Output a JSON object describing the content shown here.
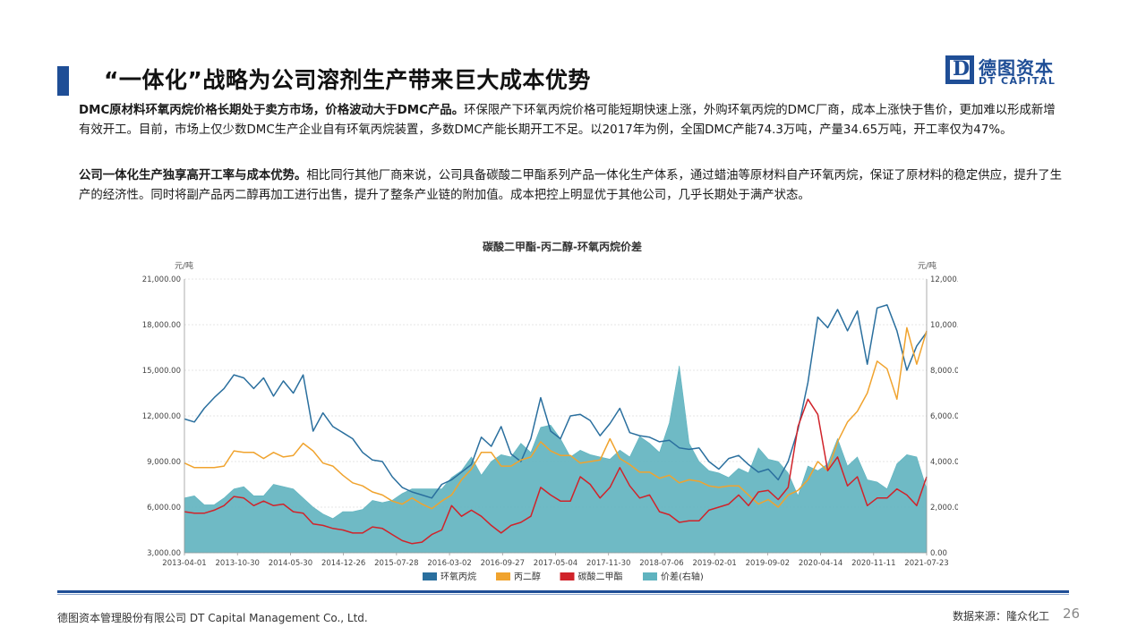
{
  "page": {
    "title": "“一体化”战略为公司溶剂生产带来巨大成本优势",
    "logo": {
      "cn": "德图资本",
      "en": "DT CAPITAL",
      "mark": "D"
    },
    "para1": {
      "bold": "DMC原材料环氧丙烷价格长期处于卖方市场，价格波动大于DMC产品。",
      "text": "环保限产下环氧丙烷价格可能短期快速上涨，外购环氧丙烷的DMC厂商，成本上涨快于售价，更加难以形成新增有效开工。目前，市场上仅少数DMC生产企业自有环氧丙烷装置，多数DMC产能长期开工不足。以2017年为例，全国DMC产能74.3万吨，产量34.65万吨，开工率仅为47%。"
    },
    "para2": {
      "bold": "公司一体化生产独享高开工率与成本优势。",
      "text": "相比同行其他厂商来说，公司具备碳酸二甲酯系列产品一体化生产体系，通过蜡油等原材料自产环氧丙烷，保证了原材料的稳定供应，提升了生产的经济性。同时将副产品丙二醇再加工进行出售，提升了整条产业链的附加值。成本把控上明显优于其他公司，几乎长期处于满产状态。"
    },
    "footer": {
      "company": "德图资本管理股份有限公司 DT Capital Management Co., Ltd.",
      "source": "数据来源：隆众化工",
      "page_number": "26"
    }
  },
  "chart_data": {
    "type": "line",
    "title": "碳酸二甲酯-丙二醇-环氧丙烷价差",
    "left_unit": "元/吨",
    "right_unit": "元/吨",
    "ylim_left": [
      3000,
      21000
    ],
    "ylim_right": [
      0,
      12000
    ],
    "yticks_left": [
      "3,000.00",
      "6,000.00",
      "9,000.00",
      "12,000.00",
      "15,000.00",
      "18,000.00",
      "21,000.00"
    ],
    "yticks_right": [
      "0.00",
      "2,000.00",
      "4,000.00",
      "6,000.00",
      "8,000.00",
      "10,000.00",
      "12,000.00"
    ],
    "x_ticks": [
      "2013-04-01",
      "2013-10-30",
      "2014-05-30",
      "2014-12-26",
      "2015-07-28",
      "2016-03-02",
      "2016-09-27",
      "2017-05-04",
      "2017-11-30",
      "2018-07-06",
      "2019-02-01",
      "2019-09-02",
      "2020-04-14",
      "2020-11-11",
      "2021-07-23"
    ],
    "grid": true,
    "legend": "bottom",
    "series": [
      {
        "name": "环氧丙烷",
        "color": "#2a6f9e",
        "axis": "left",
        "kind": "line",
        "values": [
          11800,
          11600,
          12500,
          13200,
          13800,
          14700,
          14500,
          13800,
          14500,
          13300,
          14300,
          13500,
          14700,
          11000,
          12200,
          11300,
          10900,
          10500,
          9600,
          9100,
          9000,
          8000,
          7300,
          7000,
          6800,
          6600,
          7500,
          7800,
          8300,
          8800,
          10600,
          10000,
          11300,
          9500,
          9000,
          10500,
          13200,
          11000,
          10500,
          12000,
          12100,
          11700,
          10700,
          11500,
          12500,
          10900,
          10700,
          10600,
          10300,
          10400,
          9900,
          9800,
          9900,
          9000,
          8500,
          9200,
          9400,
          8800,
          8300,
          8500,
          7800,
          9000,
          11100,
          14200,
          18500,
          17800,
          19000,
          17600,
          18900,
          15400,
          19100,
          19300,
          17600,
          15000,
          16600,
          17500
        ]
      },
      {
        "name": "丙二醇",
        "color": "#f0a32e",
        "axis": "left",
        "kind": "line",
        "values": [
          8900,
          8600,
          8600,
          8600,
          8700,
          9700,
          9600,
          9600,
          9200,
          9600,
          9300,
          9400,
          10200,
          9700,
          8900,
          8700,
          8100,
          7600,
          7400,
          7000,
          6800,
          6400,
          6200,
          6600,
          6200,
          5900,
          6400,
          6800,
          7800,
          8500,
          9600,
          9600,
          8700,
          8700,
          9100,
          9300,
          10300,
          9700,
          9400,
          9400,
          8900,
          9000,
          9100,
          10500,
          9200,
          8800,
          8300,
          8300,
          7900,
          8100,
          7600,
          7800,
          7700,
          7400,
          7300,
          7400,
          7400,
          6800,
          6200,
          6500,
          6000,
          6800,
          7100,
          7800,
          9000,
          8400,
          10300,
          11600,
          12300,
          13500,
          15600,
          15100,
          13100,
          17800,
          15400,
          17600
        ]
      },
      {
        "name": "碳酸二甲酯",
        "color": "#d0232a",
        "axis": "left",
        "kind": "line",
        "values": [
          5700,
          5600,
          5600,
          5800,
          6100,
          6700,
          6600,
          6100,
          6400,
          6100,
          6200,
          5700,
          5600,
          4900,
          4800,
          4600,
          4500,
          4300,
          4300,
          4700,
          4600,
          4200,
          3800,
          3600,
          3700,
          4200,
          4500,
          6100,
          5400,
          5800,
          5400,
          4800,
          4300,
          4800,
          5000,
          5400,
          7300,
          6800,
          6400,
          6400,
          8000,
          7500,
          6600,
          7300,
          8600,
          7400,
          6600,
          6800,
          5700,
          5500,
          5000,
          5100,
          5100,
          5800,
          6000,
          6200,
          6800,
          6100,
          7000,
          7100,
          6500,
          7300,
          11300,
          13100,
          12100,
          8400,
          9300,
          7400,
          8000,
          6100,
          6600,
          6600,
          7200,
          6800,
          6100,
          8000
        ]
      },
      {
        "name": "价差(右轴)",
        "color": "#5fb3bf",
        "axis": "right",
        "kind": "area",
        "values": [
          2400,
          2500,
          2100,
          2100,
          2400,
          2800,
          2900,
          2500,
          2500,
          3000,
          2900,
          2800,
          2400,
          2000,
          1700,
          1500,
          1800,
          1800,
          1900,
          2300,
          2200,
          2300,
          2600,
          2800,
          2800,
          2800,
          2800,
          3300,
          3600,
          4200,
          3400,
          4000,
          4300,
          4200,
          4800,
          4400,
          5500,
          5600,
          5000,
          4200,
          4500,
          4300,
          4200,
          4100,
          4500,
          4200,
          5100,
          4800,
          4400,
          5700,
          8200,
          4800,
          4000,
          3600,
          3500,
          3300,
          3700,
          3500,
          4600,
          4100,
          4000,
          3500,
          2500,
          3800,
          3600,
          3900,
          5000,
          3800,
          4200,
          3200,
          3100,
          2800,
          3900,
          4300,
          4200,
          2800
        ]
      }
    ]
  }
}
